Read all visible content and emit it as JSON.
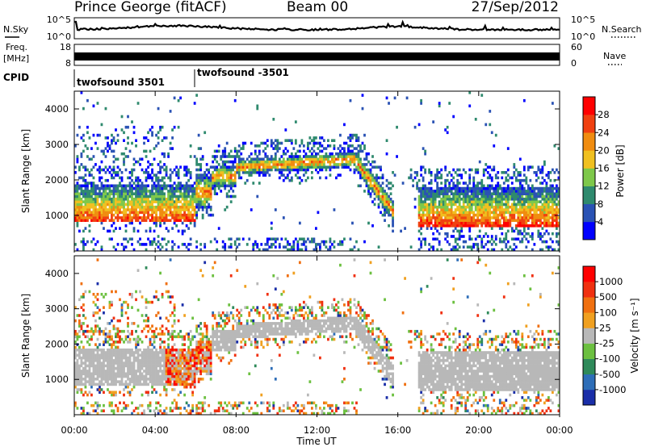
{
  "header": {
    "station": "Prince George (fitACF)",
    "beam": "Beam 00",
    "date": "27/Sep/2012"
  },
  "panels": {
    "nsky": {
      "label": "N.Sky",
      "ticks": [
        "10^5",
        "10^0"
      ],
      "right_label": "N.Search",
      "right_ticks": [
        "10^5",
        "10^0"
      ]
    },
    "freq": {
      "label_line1": "Freq.",
      "label_line2": "[MHz]",
      "ticks": [
        "18",
        "8"
      ],
      "right_label": "Nave",
      "right_ticks": [
        "60",
        "0"
      ]
    },
    "cpid": {
      "label": "CPID",
      "segments": [
        "twofsound 3501",
        "twofsound -3501"
      ]
    }
  },
  "chart_data": [
    {
      "type": "heatmap",
      "name": "power",
      "ylabel": "Slant Range [km]",
      "y_ticks": [
        "1000",
        "2000",
        "3000",
        "4000"
      ],
      "ylim": [
        0,
        4500
      ],
      "x_ticks": [
        "00:00",
        "04:00",
        "08:00",
        "12:00",
        "16:00",
        "20:00",
        "00:00"
      ],
      "xlim_hours": [
        0,
        24
      ],
      "colorbar": {
        "label": "Power [dB]",
        "ticks": [
          "4",
          "8",
          "12",
          "16",
          "20",
          "24",
          "28"
        ],
        "colors": [
          "#0000ff",
          "#2a52b4",
          "#2f8a6e",
          "#7ec84a",
          "#f0c020",
          "#f08c10",
          "#f04010",
          "#ff0000"
        ]
      }
    },
    {
      "type": "heatmap",
      "name": "velocity",
      "ylabel": "Slant Range [km]",
      "y_ticks": [
        "1000",
        "2000",
        "3000",
        "4000"
      ],
      "ylim": [
        0,
        4500
      ],
      "x_ticks": [
        "00:00",
        "04:00",
        "08:00",
        "12:00",
        "16:00",
        "20:00",
        "00:00"
      ],
      "xlabel": "Time UT",
      "colorbar": {
        "label": "Velocity [m s⁻¹]",
        "ticks": [
          "1000",
          "500",
          "100",
          "25",
          "-25",
          "-100",
          "-500",
          "-1000"
        ],
        "colors": [
          "#1a2ea8",
          "#2e6eb8",
          "#2f8a5a",
          "#6cc040",
          "#b8b8b8",
          "#f0a020",
          "#f07010",
          "#f03010",
          "#ff0000"
        ]
      }
    }
  ]
}
